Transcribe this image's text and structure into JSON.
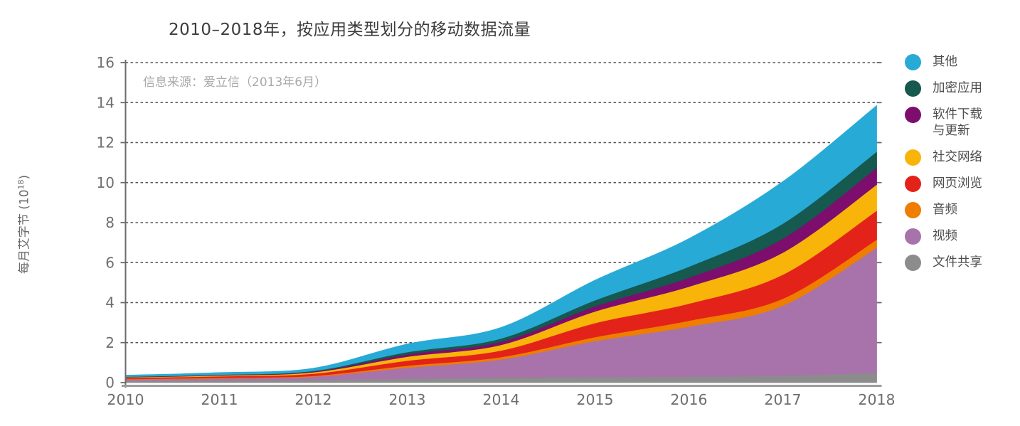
{
  "chart_data": {
    "type": "area",
    "subtype": "stacked",
    "title": "2010–2018年，按应用类型划分的移动数据流量",
    "source": "信息来源：爱立信（2013年6月）",
    "ylabel": {
      "prefix": "每月艾字节 (10",
      "sup": "18",
      "suffix": ")"
    },
    "x": [
      2010,
      2011,
      2012,
      2013,
      2014,
      2015,
      2016,
      2017,
      2018
    ],
    "xticks": [
      "2010",
      "2011",
      "2012",
      "2013",
      "2014",
      "2015",
      "2016",
      "2017",
      "2018"
    ],
    "yticks": [
      0,
      2,
      4,
      6,
      8,
      10,
      12,
      14,
      16
    ],
    "ylim": [
      0,
      16
    ],
    "grid": "horizontal-dashed",
    "legend_position": "right",
    "series": [
      {
        "name": "文件共享",
        "color": "#8c8c8c",
        "values": [
          0.1,
          0.12,
          0.15,
          0.2,
          0.26,
          0.28,
          0.3,
          0.35,
          0.5
        ]
      },
      {
        "name": "视频",
        "color": "#a873aa",
        "values": [
          0.06,
          0.09,
          0.15,
          0.55,
          0.9,
          1.8,
          2.5,
          3.5,
          6.25
        ]
      },
      {
        "name": "音频",
        "color": "#ee7d00",
        "values": [
          0.02,
          0.03,
          0.04,
          0.1,
          0.12,
          0.2,
          0.3,
          0.35,
          0.4
        ]
      },
      {
        "name": "网页浏览",
        "color": "#e3231a",
        "values": [
          0.06,
          0.08,
          0.11,
          0.25,
          0.33,
          0.7,
          0.85,
          1.2,
          1.45
        ]
      },
      {
        "name": "社交网络",
        "color": "#f9b40a",
        "values": [
          0.03,
          0.04,
          0.07,
          0.2,
          0.28,
          0.58,
          0.85,
          1.1,
          1.3
        ]
      },
      {
        "name": "软件下载与更新",
        "color": "#7d0e6e",
        "values": [
          0.015,
          0.02,
          0.035,
          0.12,
          0.16,
          0.26,
          0.45,
          0.7,
          0.85
        ]
      },
      {
        "name": "加密应用",
        "color": "#15594f",
        "values": [
          0.015,
          0.02,
          0.035,
          0.11,
          0.16,
          0.3,
          0.55,
          0.75,
          0.8
        ]
      },
      {
        "name": "其他",
        "color": "#28aad7",
        "values": [
          0.07,
          0.1,
          0.13,
          0.4,
          0.55,
          1.0,
          1.4,
          2.1,
          2.3
        ]
      }
    ],
    "legend": [
      {
        "label": "其他",
        "color": "#28aad7"
      },
      {
        "label": "加密应用",
        "color": "#15594f"
      },
      {
        "label": "软件下载\n与更新",
        "color": "#7d0e6e"
      },
      {
        "label": "社交网络",
        "color": "#f9b40a"
      },
      {
        "label": "网页浏览",
        "color": "#e3231a"
      },
      {
        "label": "音频",
        "color": "#ee7d00"
      },
      {
        "label": "视频",
        "color": "#a873aa"
      },
      {
        "label": "文件共享",
        "color": "#8c8c8c"
      }
    ],
    "colors": {
      "title_text": "#3c3c3c",
      "source_text": "#a9a9a9",
      "axis_text": "#6e6e6e",
      "gridline": "#585858",
      "axis_line": "#6b6b6b",
      "baseline": "#9c9c9c"
    }
  }
}
